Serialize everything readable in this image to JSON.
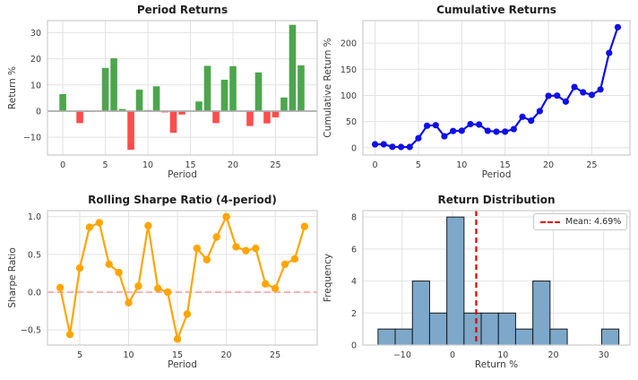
{
  "figure": {
    "bg": "#ffffff",
    "plot_bg": "#ffffff",
    "grid_color": "#e2e2e2",
    "spine_color": "#cccccc",
    "tick_color": "#3a3a3a",
    "title_color": "#1f1f1f"
  },
  "chart_data": [
    {
      "type": "bar",
      "title": "Period Returns",
      "xlabel": "Period",
      "ylabel": "Return %",
      "x": [
        0,
        1,
        2,
        3,
        4,
        5,
        6,
        7,
        8,
        9,
        10,
        11,
        12,
        13,
        14,
        15,
        16,
        17,
        18,
        19,
        20,
        21,
        22,
        23,
        24,
        25,
        26,
        27,
        28
      ],
      "values": [
        6.5,
        0.1,
        -4.6,
        -0.3,
        0.0,
        16.5,
        20.2,
        0.8,
        -14.8,
        8.2,
        0.4,
        9.5,
        -0.5,
        -8.3,
        -1.3,
        0.1,
        3.7,
        17.3,
        -4.6,
        12.0,
        17.2,
        0.2,
        -5.7,
        14.8,
        -4.7,
        -2.4,
        5.2,
        33.0,
        17.5
      ],
      "bar_width": 0.8,
      "positive_color": "#4ca64c",
      "negative_color": "#ff4c4c",
      "zero_line_color": "#ababab",
      "xticks": [
        0,
        5,
        10,
        15,
        20,
        25
      ],
      "xtick_labels": [
        "0",
        "5",
        "10",
        "15",
        "20",
        "25"
      ],
      "yticks": [
        -10,
        0,
        10,
        20,
        30
      ],
      "ytick_labels": [
        "−10",
        "0",
        "10",
        "20",
        "30"
      ],
      "xlim": [
        -1.8,
        29.9
      ],
      "ylim": [
        -16.8,
        34.6
      ],
      "grid": true,
      "legend_position": "none"
    },
    {
      "type": "line",
      "title": "Cumulative Returns",
      "xlabel": "Period",
      "ylabel": "Cumulative Return %",
      "x": [
        0,
        1,
        2,
        3,
        4,
        5,
        6,
        7,
        8,
        9,
        10,
        11,
        12,
        13,
        14,
        15,
        16,
        17,
        18,
        19,
        20,
        21,
        22,
        23,
        24,
        25,
        26,
        27,
        28
      ],
      "values": [
        6.5,
        6.6,
        1.7,
        1.4,
        1.4,
        18.1,
        42.0,
        43.1,
        21.9,
        31.9,
        32.5,
        45.1,
        44.3,
        32.4,
        30.6,
        30.8,
        35.6,
        59.1,
        51.7,
        70.0,
        99.2,
        99.6,
        88.2,
        116.1,
        105.9,
        101.0,
        111.4,
        181.2,
        230.4
      ],
      "color": "#0f0fe8",
      "marker": "circle",
      "marker_size": 3.6,
      "xticks": [
        0,
        5,
        10,
        15,
        20,
        25
      ],
      "xtick_labels": [
        "0",
        "5",
        "10",
        "15",
        "20",
        "25"
      ],
      "yticks": [
        0,
        50,
        100,
        150,
        200
      ],
      "ytick_labels": [
        "0",
        "50",
        "100",
        "150",
        "200"
      ],
      "xlim": [
        -1.4,
        29.4
      ],
      "ylim": [
        -14,
        243
      ],
      "grid": true,
      "legend_position": "none"
    },
    {
      "type": "line",
      "title": "Rolling Sharpe Ratio (4-period)",
      "xlabel": "Period",
      "ylabel": "Sharpe Ratio",
      "x": [
        3,
        4,
        5,
        6,
        7,
        8,
        9,
        10,
        11,
        12,
        13,
        14,
        15,
        16,
        17,
        18,
        19,
        20,
        21,
        22,
        23,
        24,
        25,
        26,
        27,
        28
      ],
      "values": [
        0.06,
        -0.56,
        0.32,
        0.86,
        0.92,
        0.37,
        0.26,
        -0.14,
        0.08,
        0.88,
        0.05,
        0.0,
        -0.62,
        -0.29,
        0.58,
        0.43,
        0.73,
        1.0,
        0.6,
        0.55,
        0.58,
        0.11,
        0.05,
        0.37,
        0.44,
        0.87
      ],
      "color": "#ffa500",
      "marker": "circle",
      "marker_size": 4.2,
      "ref_line": {
        "y": 0,
        "color": "#fc9a9a",
        "style": "dashed"
      },
      "xticks": [
        5,
        10,
        15,
        20,
        25
      ],
      "xtick_labels": [
        "5",
        "10",
        "15",
        "20",
        "25"
      ],
      "yticks": [
        -0.5,
        0.0,
        0.5,
        1.0
      ],
      "ytick_labels": [
        "−0.5",
        "0.0",
        "0.5",
        "1.0"
      ],
      "xlim": [
        1.7,
        29.3
      ],
      "ylim": [
        -0.7,
        1.08
      ],
      "grid": true,
      "legend_position": "none"
    },
    {
      "type": "histogram",
      "title": "Return Distribution",
      "xlabel": "Return %",
      "ylabel": "Frequency",
      "bin_edges": [
        -14.8,
        -11.39,
        -7.97,
        -4.56,
        -1.14,
        2.27,
        5.69,
        9.1,
        12.51,
        15.93,
        19.34,
        22.76,
        26.17,
        29.59,
        33.0
      ],
      "frequencies": [
        1,
        1,
        4,
        2,
        8,
        2,
        2,
        2,
        1,
        4,
        1,
        0,
        0,
        1
      ],
      "bar_color": "#7da8ca",
      "bar_edge_color": "#1a1a1a",
      "mean": 4.69,
      "mean_line_color": "#dd0000",
      "legend_label": "Mean: 4.69%",
      "xticks": [
        -10,
        0,
        10,
        20,
        30
      ],
      "xtick_labels": [
        "−10",
        "0",
        "10",
        "20",
        "30"
      ],
      "yticks": [
        0,
        2,
        4,
        6,
        8
      ],
      "ytick_labels": [
        "0",
        "2",
        "4",
        "6",
        "8"
      ],
      "xlim": [
        -17.8,
        35.2
      ],
      "ylim": [
        0,
        8.4
      ],
      "grid": true,
      "legend_position": "upper-right"
    }
  ]
}
